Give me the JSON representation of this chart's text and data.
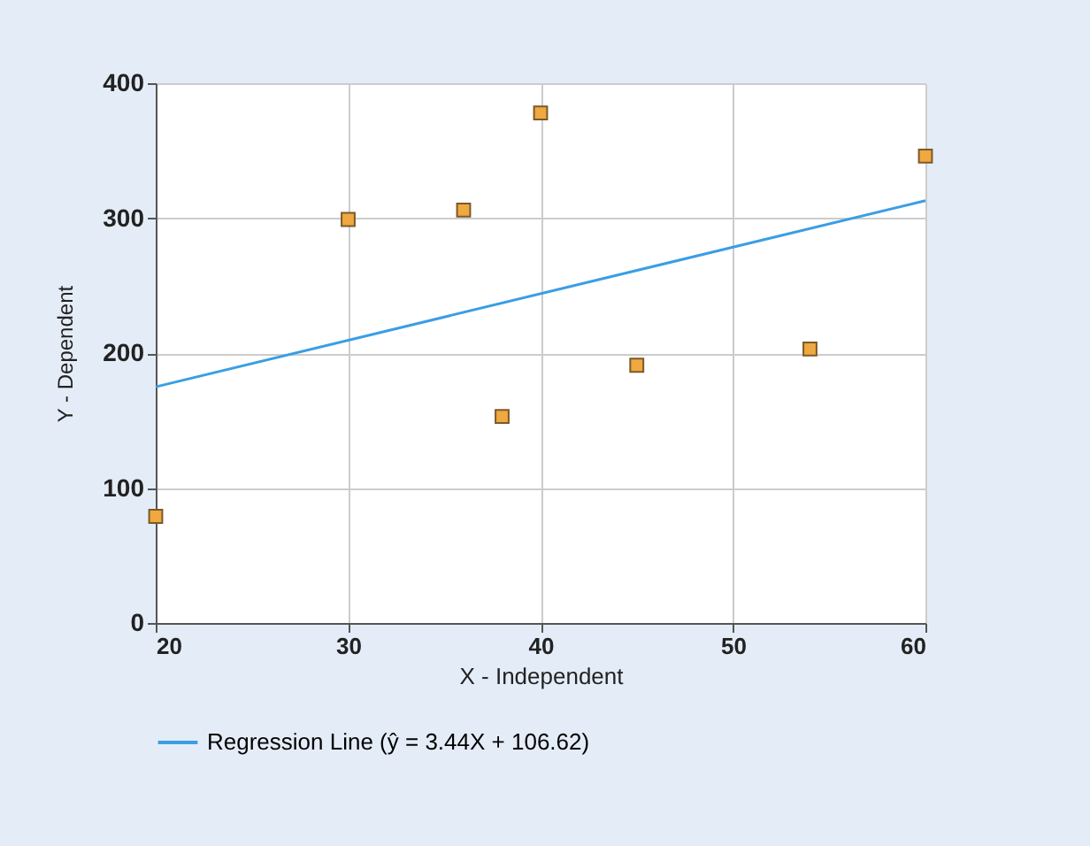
{
  "chart_data": {
    "type": "scatter",
    "xlabel": "X - Independent",
    "ylabel": "Y - Dependent",
    "series": [
      {
        "color": "#f0a840",
        "x": [
          20,
          30,
          36,
          38,
          40,
          45,
          54,
          60
        ],
        "values": [
          79,
          299,
          306,
          153,
          378,
          191,
          203,
          346
        ],
        "marker": "square"
      },
      {
        "type": "line",
        "name": "Regression Line (ŷ = 3.44X + 106.62)",
        "color": "#3a9ee4",
        "x": [
          20,
          60
        ],
        "values": [
          175,
          313
        ],
        "marker": "none"
      }
    ],
    "xlim": [
      20,
      60
    ],
    "xticks": [
      20,
      30,
      40,
      50,
      60
    ],
    "ylim": [
      0,
      400
    ],
    "yticks": [
      0,
      100,
      200,
      300,
      400
    ],
    "grid": true,
    "legend": "bottom left"
  }
}
